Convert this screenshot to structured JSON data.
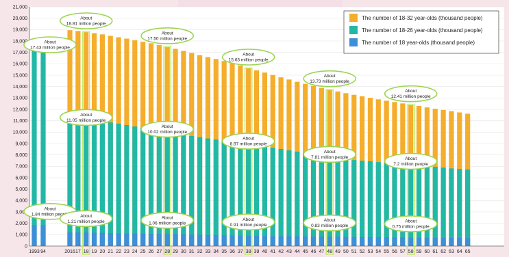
{
  "colors": {
    "s18_32": "#f5ad2c",
    "s18_26": "#22b8a6",
    "s18": "#3d8fd8",
    "annotation_stroke": "#9ed454",
    "highlight_stroke": "#c6ec72",
    "grid": "#e6e6e6"
  },
  "chart_data": {
    "type": "bar",
    "stacked": false,
    "overlapping": true,
    "legend_position": "top-right",
    "grid": true,
    "ylim": [
      0,
      21000
    ],
    "yticks": [
      "0",
      "1,000",
      "2,000",
      "3,000",
      "4,000",
      "5,000",
      "6,000",
      "7,000",
      "8,000",
      "9,000",
      "10,000",
      "11,000",
      "12,000",
      "13,000",
      "14,000",
      "15,000",
      "16,000",
      "17,000",
      "18,000",
      "19,000",
      "20,000",
      "21,000"
    ],
    "categories": [
      "1993",
      "94",
      "2016",
      "17",
      "18",
      "19",
      "20",
      "21",
      "22",
      "23",
      "24",
      "25",
      "26",
      "27",
      "28",
      "29",
      "30",
      "31",
      "32",
      "33",
      "34",
      "35",
      "36",
      "37",
      "38",
      "39",
      "40",
      "41",
      "42",
      "43",
      "44",
      "45",
      "46",
      "47",
      "48",
      "49",
      "50",
      "51",
      "52",
      "53",
      "54",
      "55",
      "56",
      "57",
      "58",
      "59",
      "60",
      "61",
      "62",
      "63",
      "64",
      "65"
    ],
    "series": [
      {
        "name": "The number of 18-32 year-olds (thousand people)",
        "color": "#f5ad2c",
        "values": [
          null,
          null,
          18950,
          18880,
          18810,
          18690,
          18580,
          18450,
          18330,
          18210,
          18070,
          17930,
          17800,
          17650,
          17500,
          17310,
          17130,
          16950,
          16760,
          16590,
          16420,
          16240,
          16080,
          15860,
          15630,
          15420,
          15230,
          15020,
          14810,
          14620,
          14420,
          14240,
          14060,
          13890,
          13730,
          13570,
          13420,
          13280,
          13150,
          13020,
          12880,
          12760,
          12640,
          12520,
          12410,
          12300,
          12170,
          12050,
          11950,
          11840,
          11730,
          11620
        ]
      },
      {
        "name": "The number of 18-26 year-olds (thousand people)",
        "color": "#22b8a6",
        "values": [
          17430,
          17430,
          11150,
          11100,
          11050,
          10980,
          10920,
          10850,
          10750,
          10620,
          10500,
          10380,
          10250,
          10130,
          10020,
          9890,
          9770,
          9660,
          9550,
          9450,
          9350,
          9250,
          9150,
          9060,
          8970,
          8880,
          8760,
          8640,
          8520,
          8400,
          8290,
          8180,
          8070,
          7940,
          7810,
          7710,
          7630,
          7550,
          7490,
          7440,
          7370,
          7300,
          7260,
          7230,
          7200,
          7120,
          7030,
          6960,
          6880,
          6820,
          6770,
          6720
        ]
      },
      {
        "name": "The number of 18 year-olds (thousand people)",
        "color": "#3d8fd8",
        "values": [
          1840,
          1840,
          1190,
          1200,
          1210,
          1180,
          1160,
          1140,
          1120,
          1110,
          1100,
          1090,
          1080,
          1070,
          1060,
          1040,
          1020,
          1000,
          990,
          970,
          960,
          950,
          940,
          920,
          910,
          900,
          890,
          880,
          870,
          860,
          860,
          850,
          840,
          840,
          830,
          820,
          810,
          800,
          800,
          790,
          790,
          780,
          770,
          760,
          750,
          750,
          740,
          740,
          730,
          720,
          720,
          710
        ]
      }
    ],
    "annotations": [
      {
        "label": "About",
        "text": "17.43 million people",
        "category": "1993",
        "series": 1
      },
      {
        "label": "About",
        "text": "18.81 million people",
        "category": "18",
        "series": 0
      },
      {
        "label": "About",
        "text": "17.50 million people",
        "category": "28",
        "series": 0
      },
      {
        "label": "About",
        "text": "15.63 million people",
        "category": "38",
        "series": 0
      },
      {
        "label": "About",
        "text": "13.73 million people",
        "category": "48",
        "series": 0
      },
      {
        "label": "About",
        "text": "12.41 million people",
        "category": "58",
        "series": 0
      },
      {
        "label": "About",
        "text": "11.05 million people",
        "category": "18",
        "series": 1
      },
      {
        "label": "About",
        "text": "10.02 million people",
        "category": "28",
        "series": 1
      },
      {
        "label": "About",
        "text": "8.97 million people",
        "category": "38",
        "series": 1
      },
      {
        "label": "About",
        "text": "7.81 million people",
        "category": "48",
        "series": 1
      },
      {
        "label": "About",
        "text": "7.2 million people",
        "category": "58",
        "series": 1
      },
      {
        "label": "About",
        "text": "1.84 million people",
        "category": "1993",
        "series": 2
      },
      {
        "label": "About",
        "text": "1.21 million people",
        "category": "18",
        "series": 2
      },
      {
        "label": "About",
        "text": "1.06 million people",
        "category": "28",
        "series": 2
      },
      {
        "label": "About",
        "text": "0.91 million people",
        "category": "38",
        "series": 2
      },
      {
        "label": "About",
        "text": "0.83 million people",
        "category": "48",
        "series": 2
      },
      {
        "label": "About",
        "text": "0.75 million people",
        "category": "58",
        "series": 2
      }
    ],
    "highlighted_categories": [
      "18",
      "28",
      "38",
      "48",
      "58"
    ]
  }
}
